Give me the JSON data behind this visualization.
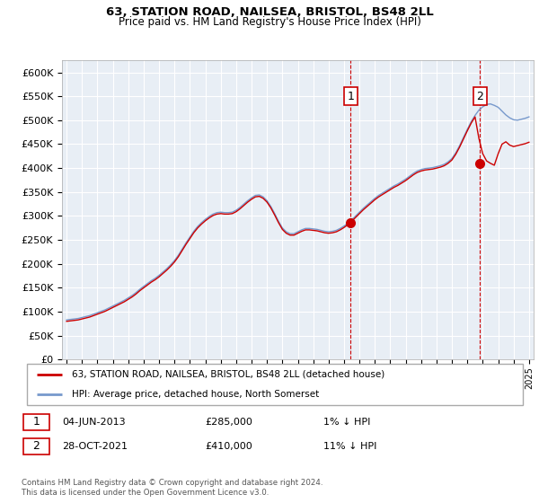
{
  "title1": "63, STATION ROAD, NAILSEA, BRISTOL, BS48 2LL",
  "title2": "Price paid vs. HM Land Registry's House Price Index (HPI)",
  "yticks": [
    0,
    50000,
    100000,
    150000,
    200000,
    250000,
    300000,
    350000,
    400000,
    450000,
    500000,
    550000,
    600000
  ],
  "ylim": [
    0,
    625000
  ],
  "xlim_start": 1994.7,
  "xlim_end": 2025.3,
  "legend_line1": "63, STATION ROAD, NAILSEA, BRISTOL, BS48 2LL (detached house)",
  "legend_line2": "HPI: Average price, detached house, North Somerset",
  "sale1_date": "04-JUN-2013",
  "sale1_price": "£285,000",
  "sale1_hpi": "1% ↓ HPI",
  "sale2_date": "28-OCT-2021",
  "sale2_price": "£410,000",
  "sale2_hpi": "11% ↓ HPI",
  "footer": "Contains HM Land Registry data © Crown copyright and database right 2024.\nThis data is licensed under the Open Government Licence v3.0.",
  "line_color_red": "#cc0000",
  "line_color_blue": "#7799cc",
  "vline_color": "#cc0000",
  "bg_color": "#e8eef5",
  "sale1_x": 2013.43,
  "sale1_y": 285000,
  "sale2_x": 2021.83,
  "sale2_y": 410000,
  "hpi_years": [
    1995.0,
    1995.25,
    1995.5,
    1995.75,
    1996.0,
    1996.25,
    1996.5,
    1996.75,
    1997.0,
    1997.25,
    1997.5,
    1997.75,
    1998.0,
    1998.25,
    1998.5,
    1998.75,
    1999.0,
    1999.25,
    1999.5,
    1999.75,
    2000.0,
    2000.25,
    2000.5,
    2000.75,
    2001.0,
    2001.25,
    2001.5,
    2001.75,
    2002.0,
    2002.25,
    2002.5,
    2002.75,
    2003.0,
    2003.25,
    2003.5,
    2003.75,
    2004.0,
    2004.25,
    2004.5,
    2004.75,
    2005.0,
    2005.25,
    2005.5,
    2005.75,
    2006.0,
    2006.25,
    2006.5,
    2006.75,
    2007.0,
    2007.25,
    2007.5,
    2007.75,
    2008.0,
    2008.25,
    2008.5,
    2008.75,
    2009.0,
    2009.25,
    2009.5,
    2009.75,
    2010.0,
    2010.25,
    2010.5,
    2010.75,
    2011.0,
    2011.25,
    2011.5,
    2011.75,
    2012.0,
    2012.25,
    2012.5,
    2012.75,
    2013.0,
    2013.25,
    2013.5,
    2013.75,
    2014.0,
    2014.25,
    2014.5,
    2014.75,
    2015.0,
    2015.25,
    2015.5,
    2015.75,
    2016.0,
    2016.25,
    2016.5,
    2016.75,
    2017.0,
    2017.25,
    2017.5,
    2017.75,
    2018.0,
    2018.25,
    2018.5,
    2018.75,
    2019.0,
    2019.25,
    2019.5,
    2019.75,
    2020.0,
    2020.25,
    2020.5,
    2020.75,
    2021.0,
    2021.25,
    2021.5,
    2021.75,
    2022.0,
    2022.25,
    2022.5,
    2022.75,
    2023.0,
    2023.25,
    2023.5,
    2023.75,
    2024.0,
    2024.25,
    2024.5,
    2024.75,
    2025.0
  ],
  "hpi_values": [
    83000,
    84000,
    85000,
    86000,
    88000,
    90000,
    92000,
    95000,
    98000,
    101000,
    104000,
    108000,
    112000,
    116000,
    120000,
    124000,
    129000,
    134000,
    140000,
    147000,
    153000,
    159000,
    165000,
    170000,
    176000,
    183000,
    190000,
    198000,
    207000,
    218000,
    231000,
    244000,
    256000,
    268000,
    278000,
    286000,
    293000,
    299000,
    304000,
    307000,
    308000,
    307000,
    307000,
    308000,
    312000,
    318000,
    325000,
    332000,
    338000,
    343000,
    344000,
    340000,
    332000,
    320000,
    305000,
    289000,
    275000,
    267000,
    263000,
    263000,
    267000,
    271000,
    274000,
    274000,
    273000,
    272000,
    270000,
    268000,
    267000,
    268000,
    270000,
    274000,
    279000,
    285000,
    292000,
    300000,
    308000,
    316000,
    323000,
    330000,
    337000,
    343000,
    348000,
    353000,
    358000,
    363000,
    367000,
    372000,
    377000,
    383000,
    389000,
    394000,
    397000,
    399000,
    400000,
    401000,
    403000,
    405000,
    408000,
    413000,
    420000,
    432000,
    447000,
    464000,
    481000,
    497000,
    510000,
    521000,
    528000,
    533000,
    534000,
    531000,
    527000,
    519000,
    511000,
    505000,
    501000,
    500000,
    502000,
    504000,
    507000
  ],
  "price_years": [
    1995.0,
    1995.25,
    1995.5,
    1995.75,
    1996.0,
    1996.25,
    1996.5,
    1996.75,
    1997.0,
    1997.25,
    1997.5,
    1997.75,
    1998.0,
    1998.25,
    1998.5,
    1998.75,
    1999.0,
    1999.25,
    1999.5,
    1999.75,
    2000.0,
    2000.25,
    2000.5,
    2000.75,
    2001.0,
    2001.25,
    2001.5,
    2001.75,
    2002.0,
    2002.25,
    2002.5,
    2002.75,
    2003.0,
    2003.25,
    2003.5,
    2003.75,
    2004.0,
    2004.25,
    2004.5,
    2004.75,
    2005.0,
    2005.25,
    2005.5,
    2005.75,
    2006.0,
    2006.25,
    2006.5,
    2006.75,
    2007.0,
    2007.25,
    2007.5,
    2007.75,
    2008.0,
    2008.25,
    2008.5,
    2008.75,
    2009.0,
    2009.25,
    2009.5,
    2009.75,
    2010.0,
    2010.25,
    2010.5,
    2010.75,
    2011.0,
    2011.25,
    2011.5,
    2011.75,
    2012.0,
    2012.25,
    2012.5,
    2012.75,
    2013.0,
    2013.25,
    2013.5,
    2013.75,
    2014.0,
    2014.25,
    2014.5,
    2014.75,
    2015.0,
    2015.25,
    2015.5,
    2015.75,
    2016.0,
    2016.25,
    2016.5,
    2016.75,
    2017.0,
    2017.25,
    2017.5,
    2017.75,
    2018.0,
    2018.25,
    2018.5,
    2018.75,
    2019.0,
    2019.25,
    2019.5,
    2019.75,
    2020.0,
    2020.25,
    2020.5,
    2020.75,
    2021.0,
    2021.25,
    2021.5,
    2021.75,
    2022.0,
    2022.25,
    2022.5,
    2022.75,
    2023.0,
    2023.25,
    2023.5,
    2023.75,
    2024.0,
    2024.25,
    2024.5,
    2024.75,
    2025.0
  ],
  "price_values": [
    80000,
    81000,
    82000,
    83000,
    85000,
    87000,
    89000,
    92000,
    95000,
    98000,
    101000,
    105000,
    109000,
    113000,
    117000,
    121000,
    126000,
    131000,
    137000,
    144000,
    150000,
    156000,
    162000,
    167000,
    173000,
    180000,
    187000,
    195000,
    204000,
    215000,
    228000,
    241000,
    253000,
    265000,
    275000,
    283000,
    290000,
    296000,
    301000,
    304000,
    305000,
    304000,
    304000,
    305000,
    309000,
    315000,
    322000,
    329000,
    335000,
    340000,
    341000,
    337000,
    329000,
    317000,
    302000,
    286000,
    272000,
    264000,
    260000,
    260000,
    264000,
    268000,
    271000,
    271000,
    270000,
    269000,
    267000,
    265000,
    264000,
    265000,
    267000,
    271000,
    276000,
    282000,
    289000,
    297000,
    305000,
    313000,
    320000,
    327000,
    334000,
    340000,
    345000,
    350000,
    355000,
    360000,
    364000,
    369000,
    374000,
    380000,
    386000,
    391000,
    394000,
    396000,
    397000,
    398000,
    400000,
    402000,
    405000,
    410000,
    417000,
    429000,
    444000,
    461000,
    478000,
    494000,
    507000,
    462000,
    430000,
    415000,
    410000,
    406000,
    430000,
    450000,
    455000,
    448000,
    445000,
    447000,
    449000,
    451000,
    454000
  ]
}
